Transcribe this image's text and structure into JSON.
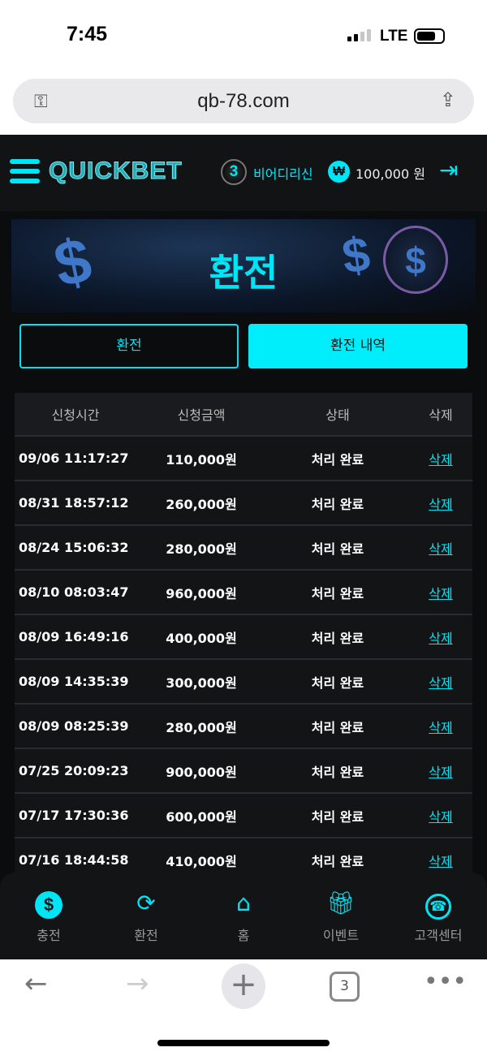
{
  "status_bar": {
    "time": "7:45",
    "network": "LTE"
  },
  "browser": {
    "url": "qb-78.com",
    "tab_count": "3"
  },
  "header": {
    "logo": "QUICKBET",
    "level": "3",
    "username": "비어디리신",
    "currency_symbol": "₩",
    "balance": "100,000 원"
  },
  "banner": {
    "title": "환전"
  },
  "tabs": [
    {
      "label": "환전",
      "active": false
    },
    {
      "label": "환전 내역",
      "active": true
    }
  ],
  "table": {
    "headers": [
      "신청시간",
      "신청금액",
      "상태",
      "삭제"
    ],
    "rows": [
      {
        "time": "09/06 11:17:27",
        "amount": "110,000원",
        "status": "처리 완료",
        "action": "삭제"
      },
      {
        "time": "08/31 18:57:12",
        "amount": "260,000원",
        "status": "처리 완료",
        "action": "삭제"
      },
      {
        "time": "08/24 15:06:32",
        "amount": "280,000원",
        "status": "처리 완료",
        "action": "삭제"
      },
      {
        "time": "08/10 08:03:47",
        "amount": "960,000원",
        "status": "처리 완료",
        "action": "삭제"
      },
      {
        "time": "08/09 16:49:16",
        "amount": "400,000원",
        "status": "처리 완료",
        "action": "삭제"
      },
      {
        "time": "08/09 14:35:39",
        "amount": "300,000원",
        "status": "처리 완료",
        "action": "삭제"
      },
      {
        "time": "08/09 08:25:39",
        "amount": "280,000원",
        "status": "처리 완료",
        "action": "삭제"
      },
      {
        "time": "07/25 20:09:23",
        "amount": "900,000원",
        "status": "처리 완료",
        "action": "삭제"
      },
      {
        "time": "07/17 17:30:36",
        "amount": "600,000원",
        "status": "처리 완료",
        "action": "삭제"
      },
      {
        "time": "07/16 18:44:58",
        "amount": "410,000원",
        "status": "처리 완료",
        "action": "삭제"
      }
    ]
  },
  "bottom_nav": [
    {
      "label": "충전",
      "icon": "dollar-coin-icon"
    },
    {
      "label": "환전",
      "icon": "exchange-icon"
    },
    {
      "label": "홈",
      "icon": "home-icon"
    },
    {
      "label": "이벤트",
      "icon": "gift-icon"
    },
    {
      "label": "고객센터",
      "icon": "phone-icon"
    }
  ],
  "colors": {
    "accent": "#00e5f5",
    "background": "#0b0c0e"
  }
}
